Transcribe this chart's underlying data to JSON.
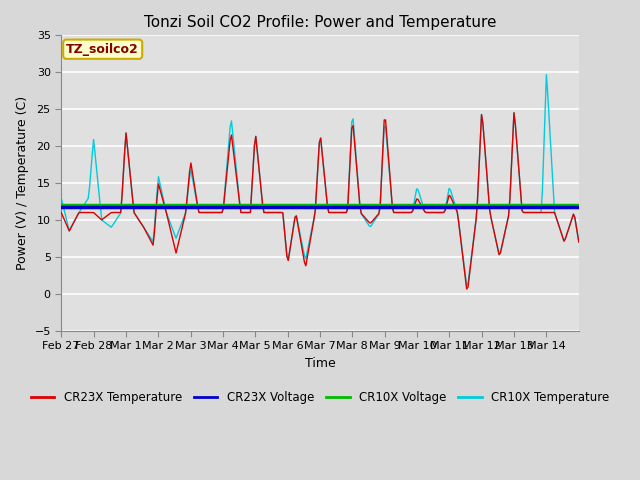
{
  "title": "Tonzi Soil CO2 Profile: Power and Temperature",
  "xlabel": "Time",
  "ylabel": "Power (V) / Temperature (C)",
  "ylim": [
    -5,
    35
  ],
  "yticks": [
    -5,
    0,
    5,
    10,
    15,
    20,
    25,
    30,
    35
  ],
  "fig_color": "#d8d8d8",
  "plot_bg_color": "#e0e0e0",
  "annotation_text": "TZ_soilco2",
  "annotation_color": "#880000",
  "annotation_bg": "#ffffcc",
  "annotation_border": "#ccaa00",
  "legend_entries": [
    "CR23X Temperature",
    "CR23X Voltage",
    "CR10X Voltage",
    "CR10X Temperature"
  ],
  "legend_colors": [
    "#dd0000",
    "#0000cc",
    "#00bb00",
    "#00ccdd"
  ],
  "cr23x_voltage_value": 11.75,
  "cr10x_voltage_value": 12.0,
  "date_labels": [
    "Feb 27",
    "Feb 28",
    "Mar 1",
    "Mar 2",
    "Mar 3",
    "Mar 4",
    "Mar 5",
    "Mar 6",
    "Mar 7",
    "Mar 8",
    "Mar 9",
    "Mar 10",
    "Mar 11",
    "Mar 12",
    "Mar 13",
    "Mar 14"
  ],
  "num_days": 16,
  "key_times": [
    0,
    0.25,
    0.55,
    0.85,
    1.0,
    1.25,
    1.55,
    1.85,
    2.0,
    2.25,
    2.55,
    2.85,
    3.0,
    3.25,
    3.55,
    3.85,
    4.0,
    4.25,
    4.55,
    4.85,
    5.0,
    5.25,
    5.55,
    5.85,
    6.0,
    6.25,
    6.55,
    6.85,
    7.0,
    7.25,
    7.55,
    7.85,
    8.0,
    8.25,
    8.55,
    8.85,
    9.0,
    9.25,
    9.55,
    9.85,
    10.0,
    10.25,
    10.55,
    10.85,
    11.0,
    11.25,
    11.55,
    11.85,
    12.0,
    12.25,
    12.55,
    12.85,
    13.0,
    13.25,
    13.55,
    13.85,
    14.0,
    14.25,
    14.55,
    14.85,
    15.0,
    15.25,
    15.55,
    15.85,
    16.0
  ],
  "cr23x_temp_vals": [
    11,
    8.5,
    11,
    11,
    11,
    10,
    11,
    11,
    22,
    11,
    9,
    6.5,
    15,
    11,
    5.5,
    11,
    18,
    11,
    11,
    11,
    11,
    22,
    11,
    11,
    22,
    11,
    11,
    11,
    4,
    11,
    3.5,
    11,
    22,
    11,
    11,
    11,
    24,
    11,
    9.5,
    11,
    25,
    11,
    11,
    11,
    13,
    11,
    11,
    11,
    13.5,
    11,
    0,
    11,
    25,
    11,
    5,
    11,
    25,
    11,
    11,
    11,
    11,
    11,
    7,
    11,
    7
  ],
  "cr10x_temp_vals": [
    13,
    8.5,
    11,
    13,
    21,
    10,
    9,
    11,
    22,
    11,
    9,
    7,
    16,
    11,
    7.5,
    11,
    17,
    11,
    11,
    11,
    11,
    24,
    11,
    11,
    22,
    11,
    11,
    11,
    4,
    11,
    4.5,
    11,
    22,
    11,
    11,
    11,
    25,
    11,
    9,
    11,
    24,
    11,
    11,
    11,
    14.5,
    11,
    11,
    11,
    14.5,
    11,
    0.5,
    11,
    25,
    11,
    5,
    11,
    25,
    11,
    11,
    11,
    30,
    11,
    7,
    11,
    7
  ]
}
